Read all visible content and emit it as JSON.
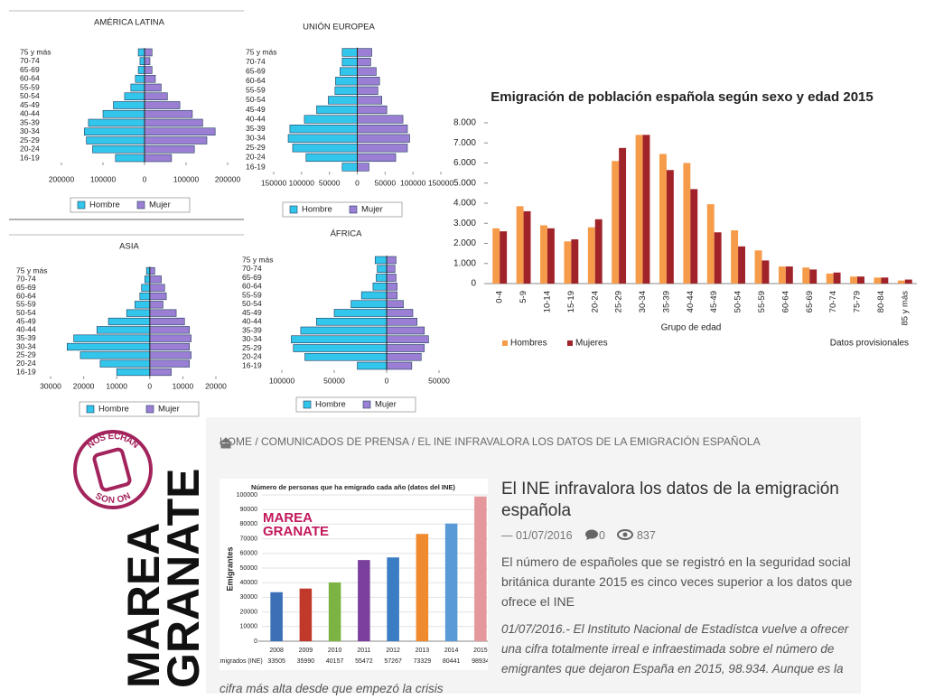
{
  "chart_data": [
    {
      "type": "pyramid",
      "title": "AMÉRICA LATINA",
      "categories": [
        "16-19",
        "20-24",
        "25-29",
        "30-34",
        "35-39",
        "40-44",
        "45-49",
        "50-54",
        "55-59",
        "60-64",
        "65-69",
        "70-74",
        "75 y más"
      ],
      "series": [
        {
          "name": "Hombre",
          "color": "#33c6ec",
          "values": [
            -70000,
            -125000,
            -140000,
            -145000,
            -135000,
            -100000,
            -75000,
            -48000,
            -33000,
            -22000,
            -15000,
            -11000,
            -15000
          ]
        },
        {
          "name": "Mujer",
          "color": "#9b7fd4",
          "values": [
            65000,
            120000,
            150000,
            170000,
            140000,
            115000,
            85000,
            55000,
            40000,
            26000,
            18000,
            13000,
            18000
          ]
        }
      ],
      "xlim": [
        -200000,
        200000
      ],
      "xticks": [
        {
          "value": -200000,
          "label": "200000"
        },
        {
          "value": -100000,
          "label": "100000"
        },
        0,
        100000,
        200000
      ],
      "legend": "bottom"
    },
    {
      "type": "pyramid",
      "title": "UNIÓN EUROPEA",
      "categories": [
        "16-19",
        "20-24",
        "25-29",
        "30-34",
        "35-39",
        "40-44",
        "45-49",
        "50-54",
        "55-59",
        "60-64",
        "65-69",
        "70-74",
        "75 y más"
      ],
      "series": [
        {
          "name": "Hombre",
          "color": "#33c6ec",
          "values": [
            -27000,
            -92000,
            -116000,
            -124000,
            -121000,
            -95000,
            -73000,
            -52000,
            -40000,
            -39000,
            -31000,
            -27000,
            -27000
          ]
        },
        {
          "name": "Mujer",
          "color": "#9b7fd4",
          "values": [
            21000,
            69000,
            90000,
            94000,
            90000,
            82000,
            53000,
            44000,
            37000,
            40000,
            34000,
            24000,
            26000
          ]
        }
      ],
      "xlim": [
        -150000,
        150000
      ],
      "xticks": [
        {
          "value": -150000,
          "label": "150000"
        },
        {
          "value": -100000,
          "label": "100000"
        },
        {
          "value": -50000,
          "label": "50000"
        },
        0,
        50000,
        100000,
        150000
      ],
      "legend": "bottom"
    },
    {
      "type": "pyramid",
      "title": "ASIA",
      "categories": [
        "16-19",
        "20-24",
        "25-29",
        "30-34",
        "35-39",
        "40-44",
        "45-49",
        "50-54",
        "55-59",
        "60-64",
        "65-69",
        "70-74",
        "75 y más"
      ],
      "series": [
        {
          "name": "Hombre",
          "color": "#33c6ec",
          "values": [
            -10000,
            -15000,
            -21000,
            -25000,
            -23000,
            -16000,
            -12500,
            -7000,
            -4500,
            -3000,
            -2500,
            -1500,
            -1000
          ]
        },
        {
          "name": "Mujer",
          "color": "#9b7fd4",
          "values": [
            6500,
            12000,
            12500,
            12000,
            12500,
            12000,
            10500,
            8000,
            4000,
            5000,
            4500,
            3500,
            1500
          ]
        }
      ],
      "xlim": [
        -30000,
        20000
      ],
      "xticks": [
        {
          "value": -30000,
          "label": "30000"
        },
        {
          "value": -20000,
          "label": "20000"
        },
        {
          "value": -10000,
          "label": "10000"
        },
        0,
        10000,
        20000
      ],
      "legend": "bottom"
    },
    {
      "type": "pyramid",
      "title": "ÁFRICA",
      "categories": [
        "16-19",
        "20-24",
        "25-29",
        "30-34",
        "35-39",
        "40-44",
        "45-49",
        "50-54",
        "55-59",
        "60-64",
        "65-69",
        "70-74",
        "75 y más"
      ],
      "series": [
        {
          "name": "Hombre",
          "color": "#33c6ec",
          "values": [
            -28000,
            -78000,
            -89000,
            -91000,
            -82000,
            -67000,
            -50000,
            -34000,
            -24000,
            -13000,
            -10000,
            -9000,
            -11000
          ]
        },
        {
          "name": "Mujer",
          "color": "#9b7fd4",
          "values": [
            24000,
            33000,
            36000,
            40000,
            36000,
            29000,
            25000,
            16000,
            10000,
            10000,
            9000,
            8000,
            9000
          ]
        }
      ],
      "xlim": [
        -100000,
        50000
      ],
      "xticks": [
        {
          "value": -100000,
          "label": "100000"
        },
        {
          "value": -50000,
          "label": "50000"
        },
        0,
        50000
      ],
      "legend": "bottom"
    },
    {
      "type": "bar",
      "title": "Emigración de población española según sexo y edad 2015",
      "categories": [
        "0-4",
        "5-9",
        "10-14",
        "15-19",
        "20-24",
        "25-29",
        "30-34",
        "35-39",
        "40-44",
        "45-49",
        "50-54",
        "55-59",
        "60-64",
        "65-69",
        "70-74",
        "75-79",
        "80-84",
        "85 y más"
      ],
      "series": [
        {
          "name": "Hombres",
          "color": "#f59b4a",
          "values": [
            2750,
            3850,
            2900,
            2100,
            2800,
            6100,
            7400,
            6450,
            6000,
            3950,
            2650,
            1650,
            850,
            800,
            500,
            350,
            300,
            150
          ]
        },
        {
          "name": "Mujeres",
          "color": "#a0232a",
          "values": [
            2600,
            3600,
            2750,
            2200,
            3200,
            6750,
            7400,
            5650,
            4700,
            2550,
            1850,
            1150,
            850,
            700,
            550,
            350,
            300,
            200
          ]
        }
      ],
      "ylim": [
        0,
        8000
      ],
      "yticks": [
        0,
        {
          "value": 1000,
          "label": "1.000"
        },
        {
          "value": 2000,
          "label": "2.000"
        },
        {
          "value": 3000,
          "label": "3.000"
        },
        {
          "value": 4000,
          "label": "4.000"
        },
        {
          "value": 5000,
          "label": "5.000"
        },
        {
          "value": 6000,
          "label": "6.000"
        },
        {
          "value": 7000,
          "label": "7.000"
        },
        {
          "value": 8000,
          "label": "8.000"
        }
      ],
      "xlabel": "Grupo de edad",
      "note": "Datos provisionales",
      "legend": "bottom-left",
      "grid": false
    },
    {
      "type": "bar",
      "title": "Número de personas que ha emigrado cada año (datos del INE)",
      "categories": [
        "2008",
        "2009",
        "2010",
        "2011",
        "2012",
        "2013",
        "2014",
        "2015"
      ],
      "values": [
        33505,
        35990,
        40157,
        55472,
        57267,
        73329,
        80441,
        98934
      ],
      "colors": [
        "#3b6fb6",
        "#c0392b",
        "#7cb342",
        "#7b3f9e",
        "#3b7dc4",
        "#ef8a2f",
        "#5b9bd5",
        "#e5989b"
      ],
      "ylim": [
        0,
        100000
      ],
      "yticks": [
        0,
        10000,
        20000,
        30000,
        40000,
        50000,
        60000,
        70000,
        80000,
        90000,
        100000
      ],
      "ylabel": "Emigrantes",
      "table_label": "Emigrados (INE)",
      "logo": [
        "MAREA",
        "GRANATE"
      ],
      "grid": true
    }
  ],
  "website": {
    "breadcrumb": "HOME / COMUNICADOS DE PRENSA / EL INE INFRAVALORA LOS DATOS DE LA EMIGRACIÓN ESPAÑOLA",
    "logo": {
      "lines": [
        "MAREA",
        "GRANATE"
      ],
      "stamp_top": "NOS ECHAN",
      "stamp_bottom": "SON ON"
    },
    "article": {
      "title": "El INE infravalora los datos de la emigración española",
      "date": "— 01/07/2016",
      "comments": 0,
      "views": 837,
      "summary": "El número de españoles que se registró en la seguridad social británica durante 2015 es cinco veces superior a los datos que ofrece el INE",
      "body": "01/07/2016.- El Instituto Nacional de Estadístca vuelve a ofrecer una cifra totalmente irreal e infraestimada sobre el número de emigrantes que dejaron España en 2015, 98.934. Aunque es la cifra más alta desde que empezó la crisis"
    }
  }
}
